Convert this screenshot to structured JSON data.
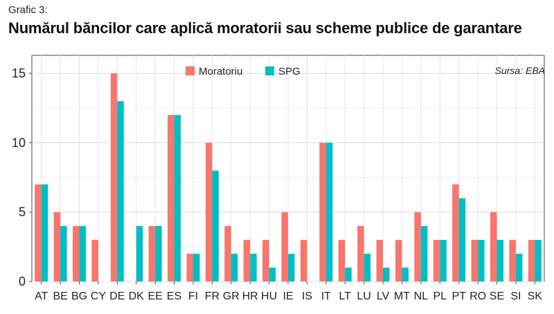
{
  "figure": {
    "caption": "Grafic 3:",
    "title": "Numărul băncilor care aplică moratorii sau scheme publice de garantare",
    "source": "Sursa: EBA"
  },
  "chart_data": {
    "type": "bar",
    "title": "Numărul băncilor care aplică moratorii sau scheme publice de garantare",
    "xlabel": "",
    "ylabel": "",
    "ylim": [
      0,
      16.3
    ],
    "yticks": [
      0,
      5,
      10,
      15
    ],
    "grid": true,
    "legend_position": "top-center",
    "categories": [
      "AT",
      "BE",
      "BG",
      "CY",
      "DE",
      "DK",
      "EE",
      "ES",
      "FI",
      "FR",
      "GR",
      "HR",
      "HU",
      "IE",
      "IS",
      "IT",
      "LT",
      "LU",
      "LV",
      "MT",
      "NL",
      "PL",
      "PT",
      "RO",
      "SE",
      "SI",
      "SK"
    ],
    "series": [
      {
        "name": "Moratoriu",
        "color": "#F8766D",
        "values": [
          7,
          5,
          4,
          3,
          15,
          0,
          4,
          12,
          2,
          10,
          4,
          3,
          3,
          5,
          3,
          10,
          3,
          4,
          3,
          3,
          5,
          3,
          7,
          3,
          5,
          3,
          3
        ]
      },
      {
        "name": "SPG",
        "color": "#00BFC4",
        "values": [
          7,
          4,
          4,
          0,
          13,
          4,
          4,
          12,
          2,
          8,
          2,
          2,
          1,
          2,
          0,
          10,
          1,
          2,
          1,
          1,
          4,
          3,
          6,
          3,
          3,
          2,
          3
        ]
      }
    ]
  }
}
